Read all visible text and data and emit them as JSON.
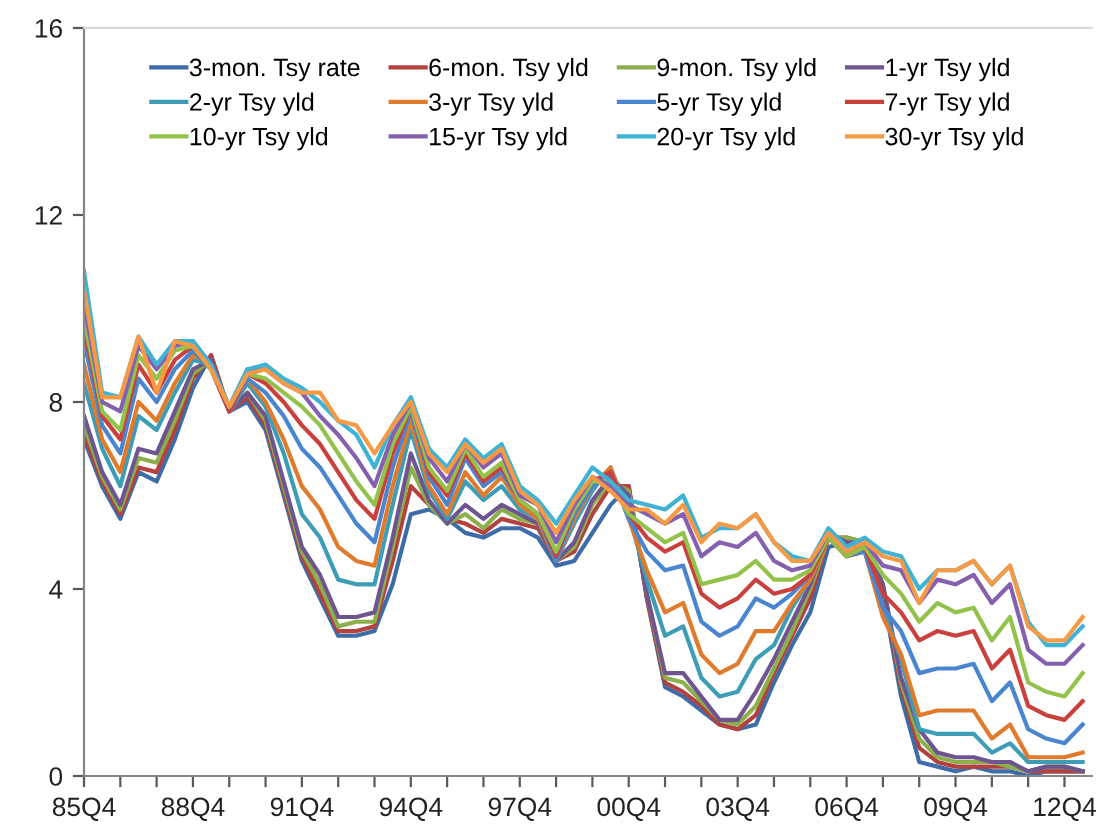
{
  "chart_data": {
    "type": "line",
    "categories": [
      "85Q4",
      null,
      null,
      null,
      null,
      null,
      "88Q4",
      null,
      null,
      null,
      null,
      null,
      "91Q4",
      null,
      null,
      null,
      null,
      null,
      "94Q4",
      null,
      null,
      null,
      null,
      null,
      "97Q4",
      null,
      null,
      null,
      null,
      null,
      "00Q4",
      null,
      null,
      null,
      null,
      null,
      "03Q4",
      null,
      null,
      null,
      null,
      null,
      "06Q4",
      null,
      null,
      null,
      null,
      null,
      "09Q4",
      null,
      null,
      null,
      null,
      null,
      "12Q4",
      null
    ],
    "ylim": [
      0,
      16
    ],
    "yticks": [
      0,
      4,
      8,
      12,
      16
    ],
    "grid": false,
    "legend": "top",
    "marker": "none",
    "line_style": "solid",
    "series": [
      {
        "name": "3-mon. Tsy rate",
        "color": "#3d6ca8",
        "values": [
          7.2,
          6.2,
          5.5,
          6.5,
          6.3,
          7.2,
          8.3,
          9.0,
          7.8,
          8.0,
          7.4,
          6.0,
          4.6,
          3.8,
          3.0,
          3.0,
          3.1,
          4.1,
          5.6,
          5.7,
          5.5,
          5.2,
          5.1,
          5.3,
          5.3,
          5.1,
          4.5,
          4.6,
          5.2,
          5.8,
          6.2,
          3.8,
          1.9,
          1.7,
          1.4,
          1.1,
          1.0,
          1.1,
          2.0,
          2.8,
          3.5,
          4.9,
          5.0,
          4.9,
          3.9,
          1.7,
          0.3,
          0.2,
          0.1,
          0.2,
          0.1,
          0.1,
          0.0,
          0.1,
          0.1,
          0.1
        ]
      },
      {
        "name": "6-mon. Tsy yld",
        "color": "#b3413e",
        "values": [
          7.3,
          6.3,
          5.6,
          6.6,
          6.5,
          7.4,
          8.5,
          9.0,
          7.8,
          8.1,
          7.5,
          6.1,
          4.7,
          3.9,
          3.1,
          3.1,
          3.2,
          4.6,
          6.2,
          5.8,
          5.5,
          5.4,
          5.2,
          5.5,
          5.4,
          5.3,
          4.6,
          4.8,
          5.6,
          6.2,
          6.2,
          3.8,
          2.0,
          1.8,
          1.5,
          1.1,
          1.0,
          1.3,
          2.2,
          3.0,
          3.8,
          5.1,
          5.1,
          5.0,
          4.0,
          1.9,
          0.6,
          0.3,
          0.2,
          0.2,
          0.2,
          0.2,
          0.1,
          0.1,
          0.1,
          0.1
        ]
      },
      {
        "name": "9-mon. Tsy yld",
        "color": "#8caf4b",
        "values": [
          7.5,
          6.4,
          5.7,
          6.8,
          6.7,
          7.6,
          8.6,
          8.9,
          7.8,
          8.2,
          7.6,
          6.2,
          4.8,
          4.1,
          3.2,
          3.3,
          3.3,
          4.9,
          6.6,
          5.8,
          5.4,
          5.6,
          5.3,
          5.7,
          5.5,
          5.4,
          4.6,
          4.9,
          5.8,
          6.3,
          6.1,
          3.9,
          2.1,
          2.0,
          1.6,
          1.2,
          1.1,
          1.5,
          2.3,
          3.1,
          4.0,
          5.1,
          5.1,
          5.0,
          4.1,
          2.0,
          0.8,
          0.4,
          0.3,
          0.3,
          0.3,
          0.2,
          0.1,
          0.2,
          0.2,
          0.1
        ]
      },
      {
        "name": "1-yr Tsy yld",
        "color": "#6f5590",
        "values": [
          7.7,
          6.5,
          5.8,
          7.0,
          6.9,
          7.8,
          8.7,
          8.9,
          7.8,
          8.2,
          7.7,
          6.3,
          4.9,
          4.3,
          3.4,
          3.4,
          3.5,
          5.1,
          6.9,
          5.9,
          5.4,
          5.8,
          5.5,
          5.8,
          5.6,
          5.4,
          4.6,
          5.0,
          5.9,
          6.4,
          6.0,
          3.9,
          2.2,
          2.2,
          1.7,
          1.2,
          1.2,
          1.8,
          2.5,
          3.3,
          4.1,
          5.2,
          5.0,
          5.0,
          4.1,
          2.1,
          1.0,
          0.5,
          0.4,
          0.4,
          0.3,
          0.3,
          0.1,
          0.2,
          0.2,
          0.1
        ]
      },
      {
        "name": "2-yr Tsy yld",
        "color": "#3d9db6",
        "values": [
          8.4,
          7.0,
          6.2,
          7.7,
          7.4,
          8.2,
          8.9,
          8.8,
          7.8,
          8.4,
          7.9,
          6.9,
          5.6,
          5.1,
          4.2,
          4.1,
          4.1,
          5.8,
          7.4,
          6.1,
          5.5,
          6.3,
          5.9,
          6.2,
          5.7,
          5.5,
          4.6,
          5.4,
          6.1,
          6.6,
          5.6,
          4.2,
          3.0,
          3.2,
          2.1,
          1.7,
          1.8,
          2.5,
          2.8,
          3.6,
          4.2,
          5.1,
          4.8,
          4.9,
          3.6,
          2.5,
          1.0,
          0.9,
          0.9,
          0.9,
          0.5,
          0.7,
          0.3,
          0.3,
          0.3,
          0.3
        ]
      },
      {
        "name": "3-yr Tsy yld",
        "color": "#e07b2e",
        "values": [
          8.8,
          7.2,
          6.5,
          8.0,
          7.6,
          8.4,
          9.0,
          8.8,
          7.8,
          8.5,
          8.0,
          7.2,
          6.2,
          5.7,
          4.9,
          4.6,
          4.5,
          6.2,
          7.6,
          6.2,
          5.6,
          6.5,
          6.0,
          6.4,
          5.8,
          5.5,
          4.6,
          5.5,
          6.2,
          6.6,
          5.5,
          4.4,
          3.5,
          3.7,
          2.6,
          2.2,
          2.4,
          3.1,
          3.1,
          3.7,
          4.2,
          5.1,
          4.7,
          4.8,
          3.4,
          2.6,
          1.3,
          1.4,
          1.4,
          1.4,
          0.8,
          1.1,
          0.4,
          0.4,
          0.4,
          0.5
        ]
      },
      {
        "name": "5-yr Tsy yld",
        "color": "#4a86d0",
        "values": [
          9.3,
          7.5,
          6.9,
          8.5,
          8.0,
          8.7,
          9.1,
          8.7,
          7.8,
          8.5,
          8.2,
          7.7,
          7.0,
          6.6,
          6.0,
          5.4,
          5.0,
          6.6,
          7.8,
          6.4,
          5.8,
          6.8,
          6.2,
          6.5,
          5.9,
          5.6,
          4.6,
          5.6,
          6.2,
          6.5,
          5.5,
          4.8,
          4.4,
          4.5,
          3.3,
          3.0,
          3.2,
          3.8,
          3.6,
          3.9,
          4.3,
          5.1,
          4.7,
          4.8,
          3.6,
          3.1,
          2.2,
          2.3,
          2.3,
          2.4,
          1.6,
          2.0,
          1.0,
          0.8,
          0.7,
          1.1
        ]
      },
      {
        "name": "7-yr Tsy yld",
        "color": "#c9403c",
        "values": [
          9.6,
          7.7,
          7.2,
          8.8,
          8.2,
          8.9,
          9.2,
          8.7,
          7.8,
          8.6,
          8.4,
          8.0,
          7.5,
          7.1,
          6.5,
          5.9,
          5.5,
          6.9,
          7.9,
          6.5,
          6.0,
          6.9,
          6.3,
          6.6,
          5.9,
          5.6,
          4.7,
          5.7,
          6.3,
          6.5,
          5.6,
          5.1,
          4.8,
          5.0,
          3.9,
          3.6,
          3.8,
          4.2,
          3.9,
          4.0,
          4.3,
          5.1,
          4.7,
          4.9,
          3.9,
          3.5,
          2.9,
          3.1,
          3.0,
          3.1,
          2.3,
          2.7,
          1.5,
          1.3,
          1.2,
          1.6
        ]
      },
      {
        "name": "10-yr Tsy yld",
        "color": "#93c24a",
        "values": [
          9.8,
          7.8,
          7.4,
          9.0,
          8.5,
          9.1,
          9.2,
          8.7,
          7.9,
          8.6,
          8.5,
          8.2,
          7.9,
          7.5,
          6.9,
          6.3,
          5.8,
          7.1,
          7.9,
          6.6,
          6.1,
          7.0,
          6.4,
          6.7,
          5.9,
          5.6,
          4.8,
          5.7,
          6.3,
          6.3,
          5.6,
          5.3,
          5.0,
          5.2,
          4.1,
          4.2,
          4.3,
          4.6,
          4.2,
          4.2,
          4.4,
          5.1,
          4.7,
          4.9,
          4.3,
          3.9,
          3.3,
          3.7,
          3.5,
          3.6,
          2.9,
          3.4,
          2.0,
          1.8,
          1.7,
          2.2
        ]
      },
      {
        "name": "15-yr Tsy yld",
        "color": "#8560ae",
        "values": [
          10.1,
          8.0,
          7.8,
          9.2,
          8.7,
          9.2,
          9.3,
          8.8,
          7.9,
          8.7,
          8.7,
          8.4,
          8.2,
          7.7,
          7.3,
          6.8,
          6.2,
          7.3,
          8.0,
          6.8,
          6.3,
          7.1,
          6.6,
          6.9,
          6.0,
          5.8,
          5.0,
          5.8,
          6.4,
          6.2,
          5.8,
          5.6,
          5.4,
          5.6,
          4.7,
          5.0,
          4.9,
          5.2,
          4.6,
          4.4,
          4.5,
          5.2,
          4.8,
          5.0,
          4.5,
          4.4,
          3.7,
          4.2,
          4.1,
          4.3,
          3.7,
          4.1,
          2.7,
          2.4,
          2.4,
          2.8
        ]
      },
      {
        "name": "20-yr Tsy yld",
        "color": "#3fb3d6",
        "values": [
          10.8,
          8.2,
          8.1,
          9.4,
          8.8,
          9.3,
          9.3,
          8.8,
          7.9,
          8.7,
          8.8,
          8.5,
          8.3,
          8.0,
          7.6,
          7.3,
          6.6,
          7.5,
          8.1,
          7.0,
          6.6,
          7.2,
          6.8,
          7.1,
          6.2,
          5.9,
          5.4,
          6.0,
          6.6,
          6.3,
          5.9,
          5.8,
          5.7,
          6.0,
          5.1,
          5.3,
          5.3,
          5.6,
          5.0,
          4.7,
          4.6,
          5.3,
          4.9,
          5.1,
          4.8,
          4.7,
          4.0,
          4.4,
          4.4,
          4.6,
          4.1,
          4.5,
          3.3,
          2.8,
          2.8,
          3.2
        ]
      },
      {
        "name": "30-yr Tsy yld",
        "color": "#f79a46",
        "values": [
          10.4,
          8.1,
          8.1,
          9.4,
          8.2,
          9.3,
          9.2,
          8.7,
          7.9,
          8.6,
          8.7,
          8.4,
          8.2,
          8.2,
          7.6,
          7.5,
          6.9,
          7.5,
          8.0,
          6.9,
          6.5,
          7.1,
          6.7,
          7.0,
          6.1,
          5.8,
          5.2,
          5.9,
          6.4,
          6.1,
          5.7,
          5.7,
          5.4,
          5.8,
          5.0,
          5.4,
          5.3,
          5.6,
          5.0,
          4.6,
          4.6,
          5.2,
          4.8,
          5.0,
          4.7,
          4.6,
          3.7,
          4.4,
          4.4,
          4.6,
          4.1,
          4.5,
          3.2,
          2.9,
          2.9,
          3.4
        ]
      }
    ]
  }
}
